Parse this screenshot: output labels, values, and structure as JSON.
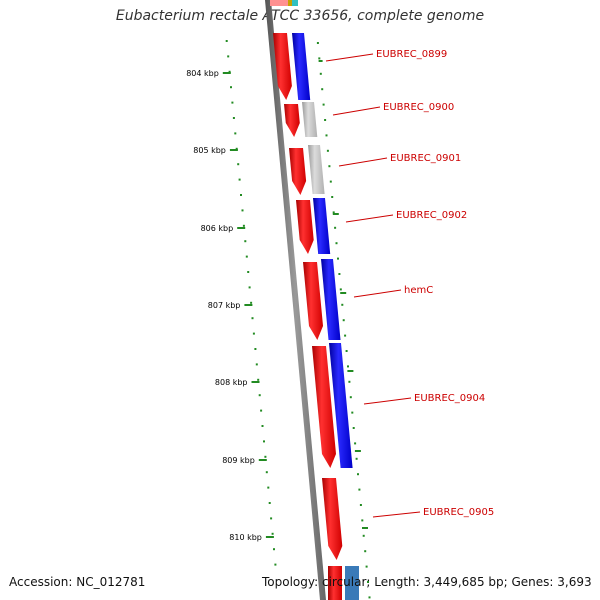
{
  "title": "Eubacterium rectale ATCC 33656, complete genome",
  "footer": {
    "accession": "Accession: NC_012781",
    "stats": "Topology: circular; Length: 3,449,685 bp; Genes: 3,693"
  },
  "scale_ticks": [
    "804 kbp",
    "805 kbp",
    "806 kbp",
    "807 kbp",
    "808 kbp",
    "809 kbp",
    "810 kbp"
  ],
  "gene_labels": [
    "EUBREC_0899",
    "EUBREC_0900",
    "EUBREC_0901",
    "EUBREC_0902",
    "hemC",
    "EUBREC_0904",
    "EUBREC_0905"
  ],
  "colors": {
    "forward_strand": "#ff0000",
    "cog_blue": "#0000ee",
    "cog_gray": "#b8b8b8",
    "backbone": "#777777",
    "gc_dashes": "#228b22",
    "label_text": "#cc0000"
  }
}
